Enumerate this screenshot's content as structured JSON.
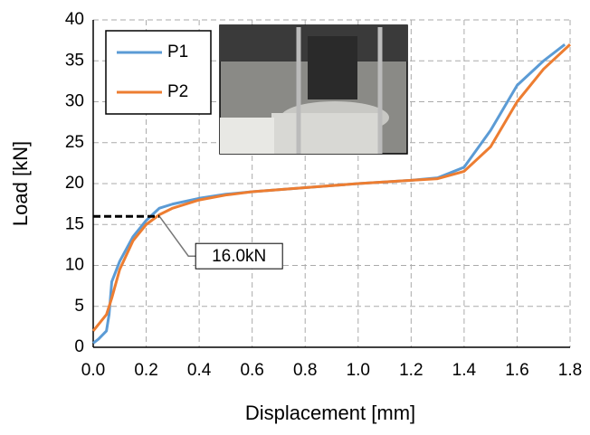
{
  "chart_data": {
    "type": "line",
    "xlabel": "Displacement [mm]",
    "ylabel": "Load [kN]",
    "xlim": [
      0,
      1.8
    ],
    "ylim": [
      0,
      40
    ],
    "xticks": [
      {
        "value": 0,
        "label": "0.0"
      },
      0.2,
      0.4,
      0.6,
      0.8,
      {
        "value": 1,
        "label": "1.0"
      },
      1.2,
      1.4,
      1.6,
      1.8
    ],
    "yticks": [
      0,
      5,
      10,
      15,
      20,
      25,
      30,
      35,
      40
    ],
    "grid": true,
    "legend": "upper-left",
    "series": [
      {
        "name": "P1",
        "color": "#5b9bd5",
        "x": [
          0,
          0.02,
          0.05,
          0.06,
          0.07,
          0.1,
          0.15,
          0.2,
          0.25,
          0.3,
          0.4,
          0.5,
          0.6,
          0.8,
          1.0,
          1.2,
          1.3,
          1.4,
          1.5,
          1.6,
          1.7,
          1.78
        ],
        "values": [
          0.5,
          1,
          2,
          4,
          8,
          10.5,
          13.5,
          15.5,
          17,
          17.5,
          18.2,
          18.7,
          19,
          19.5,
          20,
          20.4,
          20.7,
          22,
          26.5,
          32,
          35,
          37
        ]
      },
      {
        "name": "P2",
        "color": "#ed7d31",
        "x": [
          0,
          0.05,
          0.07,
          0.1,
          0.15,
          0.2,
          0.25,
          0.3,
          0.4,
          0.5,
          0.6,
          0.8,
          1.0,
          1.2,
          1.3,
          1.4,
          1.5,
          1.6,
          1.7,
          1.8
        ],
        "values": [
          2,
          4,
          6,
          9.5,
          13,
          15,
          16.2,
          17,
          18,
          18.6,
          19,
          19.5,
          20,
          20.4,
          20.6,
          21.5,
          24.5,
          30,
          34,
          37
        ]
      }
    ],
    "annotation": {
      "text": "16.0kN",
      "x": 0.25,
      "y": 16
    }
  }
}
